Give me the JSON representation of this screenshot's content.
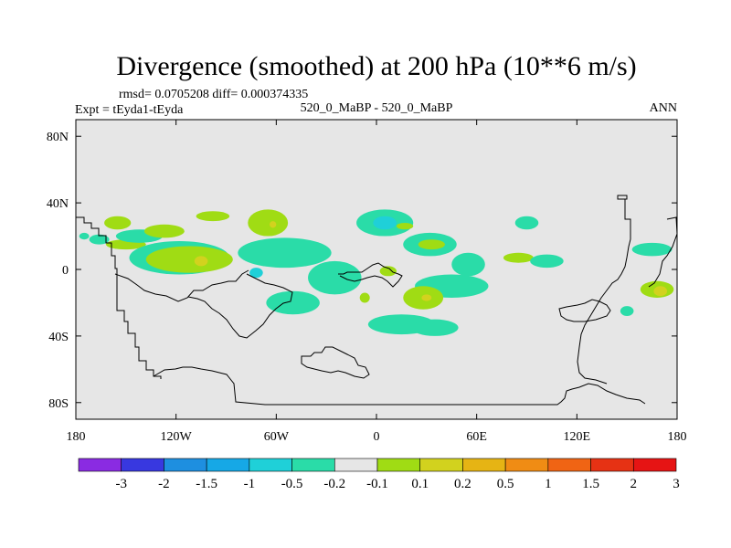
{
  "chart_data": {
    "type": "heatmap",
    "title": "Divergence (smoothed) at 200 hPa (10**6 m/s)",
    "rmsd_text": "rmsd= 0.0705208 diff= 0.000374335",
    "expt_text": "Expt = tEyda1-tEyda",
    "center_label": "520_0_MaBP - 520_0_MaBP",
    "season": "ANN",
    "x_range": [
      -180,
      180
    ],
    "y_range": [
      -90,
      90
    ],
    "x_ticks": [
      {
        "value": -180,
        "label": "180"
      },
      {
        "value": -120,
        "label": "120W"
      },
      {
        "value": -60,
        "label": "60W"
      },
      {
        "value": 0,
        "label": "0"
      },
      {
        "value": 60,
        "label": "60E"
      },
      {
        "value": 120,
        "label": "120E"
      },
      {
        "value": 180,
        "label": "180"
      }
    ],
    "y_ticks": [
      {
        "value": 80,
        "label": "80N"
      },
      {
        "value": 40,
        "label": "40N"
      },
      {
        "value": 0,
        "label": "0"
      },
      {
        "value": -40,
        "label": "40S"
      },
      {
        "value": -80,
        "label": "80S"
      }
    ],
    "colorbar": {
      "colors": [
        "#8a2be2",
        "#3838e0",
        "#1e8fe0",
        "#16a8e6",
        "#1fd0d8",
        "#2adca8",
        "#e6e6e6",
        "#a0dc14",
        "#d2d21e",
        "#e6b414",
        "#f08c14",
        "#f06414",
        "#e63214",
        "#e61414"
      ],
      "boundaries": [
        "-3",
        "-2",
        "-1.5",
        "-1",
        "-0.5",
        "-0.2",
        "-0.1",
        "0.1",
        "0.2",
        "0.5",
        "1",
        "1.5",
        "2",
        "3"
      ]
    },
    "regions": [
      {
        "lon": -155,
        "lat": 28,
        "rlon": 8,
        "rlat": 4,
        "level": "pos_small"
      },
      {
        "lon": -150,
        "lat": 15,
        "rlon": 12,
        "rlat": 3,
        "level": "pos_small"
      },
      {
        "lon": -166,
        "lat": 18,
        "rlon": 6,
        "rlat": 3,
        "level": "neg_small"
      },
      {
        "lon": -142,
        "lat": 20,
        "rlon": 14,
        "rlat": 4,
        "level": "neg_small"
      },
      {
        "lon": -127,
        "lat": 23,
        "rlon": 12,
        "rlat": 4,
        "level": "pos_small"
      },
      {
        "lon": -98,
        "lat": 32,
        "rlon": 10,
        "rlat": 3,
        "level": "pos_small"
      },
      {
        "lon": -65,
        "lat": 28,
        "rlon": 12,
        "rlat": 8,
        "level": "pos_small"
      },
      {
        "lon": -62,
        "lat": 27,
        "rlon": 2,
        "rlat": 2,
        "level": "pos_med"
      },
      {
        "lon": -118,
        "lat": 7,
        "rlon": 30,
        "rlat": 10,
        "level": "neg_small"
      },
      {
        "lon": -112,
        "lat": 6,
        "rlon": 26,
        "rlat": 8,
        "level": "pos_small"
      },
      {
        "lon": -105,
        "lat": 5,
        "rlon": 4,
        "rlat": 3,
        "level": "pos_med"
      },
      {
        "lon": -55,
        "lat": 10,
        "rlon": 28,
        "rlat": 9,
        "level": "neg_small"
      },
      {
        "lon": -72,
        "lat": -2,
        "rlon": 4,
        "rlat": 3,
        "level": "neg_med"
      },
      {
        "lon": -50,
        "lat": -20,
        "rlon": 16,
        "rlat": 7,
        "level": "neg_small"
      },
      {
        "lon": -25,
        "lat": -5,
        "rlon": 16,
        "rlat": 10,
        "level": "neg_small"
      },
      {
        "lon": -7,
        "lat": -17,
        "rlon": 3,
        "rlat": 3,
        "level": "pos_small"
      },
      {
        "lon": 5,
        "lat": 28,
        "rlon": 17,
        "rlat": 8,
        "level": "neg_small"
      },
      {
        "lon": 5,
        "lat": 28,
        "rlon": 7,
        "rlat": 4,
        "level": "neg_med"
      },
      {
        "lon": 17,
        "lat": 26,
        "rlon": 5,
        "rlat": 2,
        "level": "pos_small"
      },
      {
        "lon": 32,
        "lat": 15,
        "rlon": 16,
        "rlat": 7,
        "level": "neg_small"
      },
      {
        "lon": 33,
        "lat": 15,
        "rlon": 8,
        "rlat": 3,
        "level": "pos_small"
      },
      {
        "lon": 7,
        "lat": -1,
        "rlon": 5,
        "rlat": 3,
        "level": "pos_small"
      },
      {
        "lon": 55,
        "lat": 3,
        "rlon": 10,
        "rlat": 7,
        "level": "neg_small"
      },
      {
        "lon": 45,
        "lat": -10,
        "rlon": 22,
        "rlat": 7,
        "level": "neg_small"
      },
      {
        "lon": 28,
        "lat": -17,
        "rlon": 12,
        "rlat": 7,
        "level": "pos_small"
      },
      {
        "lon": 30,
        "lat": -17,
        "rlon": 3,
        "rlat": 2,
        "level": "pos_med"
      },
      {
        "lon": 15,
        "lat": -33,
        "rlon": 20,
        "rlat": 6,
        "level": "neg_small"
      },
      {
        "lon": 35,
        "lat": -35,
        "rlon": 14,
        "rlat": 5,
        "level": "neg_small"
      },
      {
        "lon": 90,
        "lat": 28,
        "rlon": 7,
        "rlat": 4,
        "level": "neg_small"
      },
      {
        "lon": 85,
        "lat": 7,
        "rlon": 9,
        "rlat": 3,
        "level": "pos_small"
      },
      {
        "lon": 102,
        "lat": 5,
        "rlon": 10,
        "rlat": 4,
        "level": "neg_small"
      },
      {
        "lon": 165,
        "lat": 12,
        "rlon": 12,
        "rlat": 4,
        "level": "neg_small"
      },
      {
        "lon": 168,
        "lat": -12,
        "rlon": 10,
        "rlat": 5,
        "level": "pos_small"
      },
      {
        "lon": 170,
        "lat": -13,
        "rlon": 4,
        "rlat": 3,
        "level": "pos_med"
      },
      {
        "lon": 150,
        "lat": -25,
        "rlon": 4,
        "rlat": 3,
        "level": "neg_small"
      },
      {
        "lon": -175,
        "lat": 20,
        "rlon": 3,
        "rlat": 2,
        "level": "neg_small"
      }
    ]
  }
}
